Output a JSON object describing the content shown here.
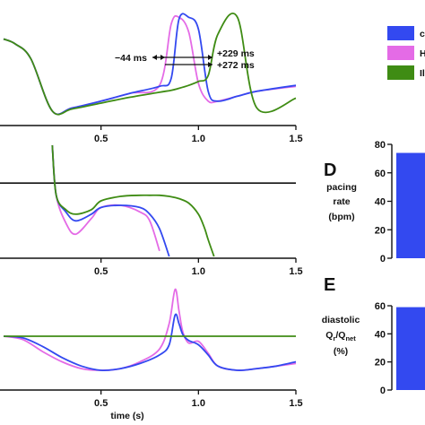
{
  "figure": {
    "x_axis_title": "time (s)",
    "x_ticks": [
      "0.5",
      "1.0",
      "1.5"
    ],
    "panel_letters": {
      "d": "D",
      "e": "E"
    }
  },
  "legend": {
    "entries": [
      {
        "label": "c",
        "color": "#3349f0"
      },
      {
        "label": "H",
        "color": "#e46be6"
      },
      {
        "label": "Il",
        "color": "#3f8c14"
      }
    ]
  },
  "annotations": {
    "shift_1": "−44 ms",
    "shift_2": "+229 ms",
    "shift_3": "+272 ms"
  },
  "chart_data": [
    {
      "type": "line",
      "panel": "top",
      "x": [
        0.0,
        0.06,
        0.14,
        0.25,
        0.35,
        0.5,
        0.65,
        0.8,
        0.86,
        0.9,
        0.95,
        1.0,
        1.05,
        1.1,
        1.2,
        1.3,
        1.5
      ],
      "series": [
        {
          "values": [
            0.75,
            0.7,
            0.55,
            0.02,
            0.05,
            0.12,
            0.2,
            0.27,
            0.35,
            0.95,
            0.97,
            0.85,
            0.22,
            0.12,
            0.17,
            0.22,
            0.28
          ]
        },
        {
          "values": [
            0.75,
            0.7,
            0.55,
            0.02,
            0.05,
            0.12,
            0.2,
            0.28,
            0.9,
            0.97,
            0.82,
            0.3,
            0.12,
            0.12,
            0.17,
            0.22,
            0.27
          ]
        },
        {
          "values": [
            0.75,
            0.7,
            0.55,
            0.02,
            0.04,
            0.1,
            0.16,
            0.21,
            0.23,
            0.25,
            0.28,
            0.32,
            0.38,
            0.8,
            0.97,
            0.05,
            0.15
          ]
        }
      ],
      "xlim": [
        0.0,
        1.5
      ]
    },
    {
      "type": "line",
      "panel": "middle",
      "x": [
        0.25,
        0.27,
        0.32,
        0.37,
        0.45,
        0.5,
        0.6,
        0.7,
        0.75,
        0.8,
        0.85,
        0.9,
        0.95,
        1.0,
        1.03,
        1.05,
        1.08
      ],
      "series": [
        {
          "values": [
            1.0,
            0.55,
            0.4,
            0.32,
            0.38,
            0.44,
            0.46,
            0.44,
            0.38,
            0.25,
            0.0,
            null,
            null,
            null,
            null,
            null,
            null
          ]
        },
        {
          "values": [
            1.0,
            0.55,
            0.3,
            0.2,
            0.34,
            0.44,
            0.46,
            0.4,
            0.32,
            0.05,
            null,
            null,
            null,
            null,
            null,
            null,
            null
          ]
        },
        {
          "values": [
            1.0,
            0.55,
            0.42,
            0.38,
            0.42,
            0.5,
            0.54,
            0.55,
            0.55,
            0.55,
            0.54,
            0.52,
            0.48,
            0.38,
            0.26,
            0.15,
            0.0
          ]
        }
      ],
      "reference_line": 0.66,
      "xlim": [
        0.0,
        1.5
      ]
    },
    {
      "type": "line",
      "panel": "bottom",
      "x": [
        0.0,
        0.1,
        0.2,
        0.3,
        0.4,
        0.5,
        0.6,
        0.7,
        0.8,
        0.85,
        0.88,
        0.9,
        0.92,
        0.95,
        1.0,
        1.05,
        1.1,
        1.2,
        1.3,
        1.4,
        1.5
      ],
      "series": [
        {
          "values": [
            0.4,
            0.38,
            0.28,
            0.15,
            0.05,
            0.0,
            0.02,
            0.08,
            0.18,
            0.3,
            0.65,
            0.55,
            0.42,
            0.35,
            0.3,
            0.18,
            0.05,
            0.0,
            0.02,
            0.05,
            0.1
          ]
        },
        {
          "values": [
            0.4,
            0.36,
            0.22,
            0.1,
            0.02,
            0.0,
            0.02,
            0.1,
            0.25,
            0.55,
            0.95,
            0.7,
            0.45,
            0.32,
            0.34,
            0.2,
            0.05,
            0.0,
            0.02,
            0.05,
            0.08
          ]
        },
        {
          "values": [
            0.4,
            0.4,
            0.4,
            0.4,
            0.4,
            0.4,
            0.4,
            0.4,
            0.4,
            0.4,
            0.4,
            0.4,
            0.4,
            0.4,
            0.4,
            0.4,
            0.4,
            0.4,
            0.4,
            0.4,
            0.4
          ]
        }
      ],
      "xlim": [
        0.0,
        1.5
      ]
    },
    {
      "type": "bar",
      "panel": "D",
      "ylabel": "pacing rate (bpm)",
      "y_ticks": [
        "0",
        "20",
        "40",
        "60",
        "80"
      ],
      "ylim": [
        0,
        80
      ],
      "values": [
        74
      ]
    },
    {
      "type": "bar",
      "panel": "E",
      "ylabel": "diastolic Qr/Qnet (%)",
      "ylabel_lines": [
        "diastolic",
        "Q",
        "r",
        "/Q",
        "net",
        "(%)"
      ],
      "y_ticks": [
        "0",
        "20",
        "40",
        "60"
      ],
      "ylim": [
        0,
        60
      ],
      "values": [
        59
      ]
    }
  ]
}
